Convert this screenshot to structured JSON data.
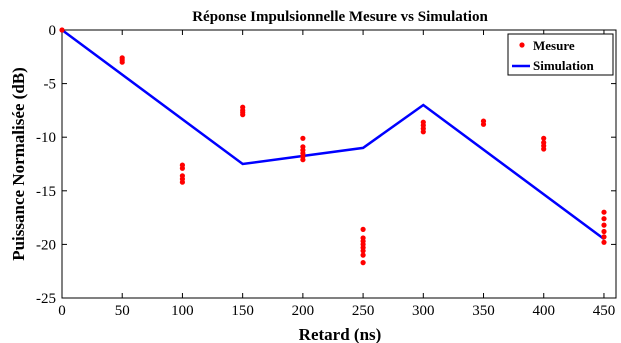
{
  "chart_data": {
    "type": "scatter+line",
    "title": "Réponse Impulsionnelle Mesure vs Simulation",
    "xlabel": "Retard (ns)",
    "ylabel": "Puissance Normalisée (dB)",
    "xlim": [
      0,
      460
    ],
    "ylim": [
      -25,
      0
    ],
    "xticks": [
      0,
      50,
      100,
      150,
      200,
      250,
      300,
      350,
      400,
      450
    ],
    "yticks": [
      0,
      -5,
      -10,
      -15,
      -20,
      -25
    ],
    "grid": false,
    "legend_position": "top-right",
    "series": [
      {
        "name": "Mesure",
        "kind": "scatter",
        "color": "#ff0000",
        "points": [
          [
            0,
            0
          ],
          [
            50,
            -2.6
          ],
          [
            50,
            -2.8
          ],
          [
            50,
            -3.0
          ],
          [
            100,
            -12.6
          ],
          [
            100,
            -12.9
          ],
          [
            100,
            -13.6
          ],
          [
            100,
            -13.9
          ],
          [
            100,
            -14.2
          ],
          [
            150,
            -7.2
          ],
          [
            150,
            -7.5
          ],
          [
            150,
            -7.7
          ],
          [
            150,
            -7.9
          ],
          [
            200,
            -10.1
          ],
          [
            200,
            -10.9
          ],
          [
            200,
            -11.2
          ],
          [
            200,
            -11.5
          ],
          [
            200,
            -11.8
          ],
          [
            200,
            -12.1
          ],
          [
            250,
            -18.6
          ],
          [
            250,
            -19.4
          ],
          [
            250,
            -19.7
          ],
          [
            250,
            -20.0
          ],
          [
            250,
            -20.3
          ],
          [
            250,
            -20.6
          ],
          [
            250,
            -21.0
          ],
          [
            250,
            -21.7
          ],
          [
            300,
            -8.6
          ],
          [
            300,
            -8.9
          ],
          [
            300,
            -9.2
          ],
          [
            300,
            -9.5
          ],
          [
            350,
            -8.5
          ],
          [
            350,
            -8.8
          ],
          [
            400,
            -10.1
          ],
          [
            400,
            -10.5
          ],
          [
            400,
            -10.8
          ],
          [
            400,
            -11.1
          ],
          [
            450,
            -17.0
          ],
          [
            450,
            -17.6
          ],
          [
            450,
            -18.2
          ],
          [
            450,
            -18.8
          ],
          [
            450,
            -19.3
          ],
          [
            450,
            -19.8
          ]
        ]
      },
      {
        "name": "Simulation",
        "kind": "line",
        "color": "#0000ff",
        "points": [
          [
            0,
            0
          ],
          [
            150,
            -12.5
          ],
          [
            250,
            -11.0
          ],
          [
            300,
            -7.0
          ],
          [
            450,
            -19.5
          ]
        ]
      }
    ]
  }
}
